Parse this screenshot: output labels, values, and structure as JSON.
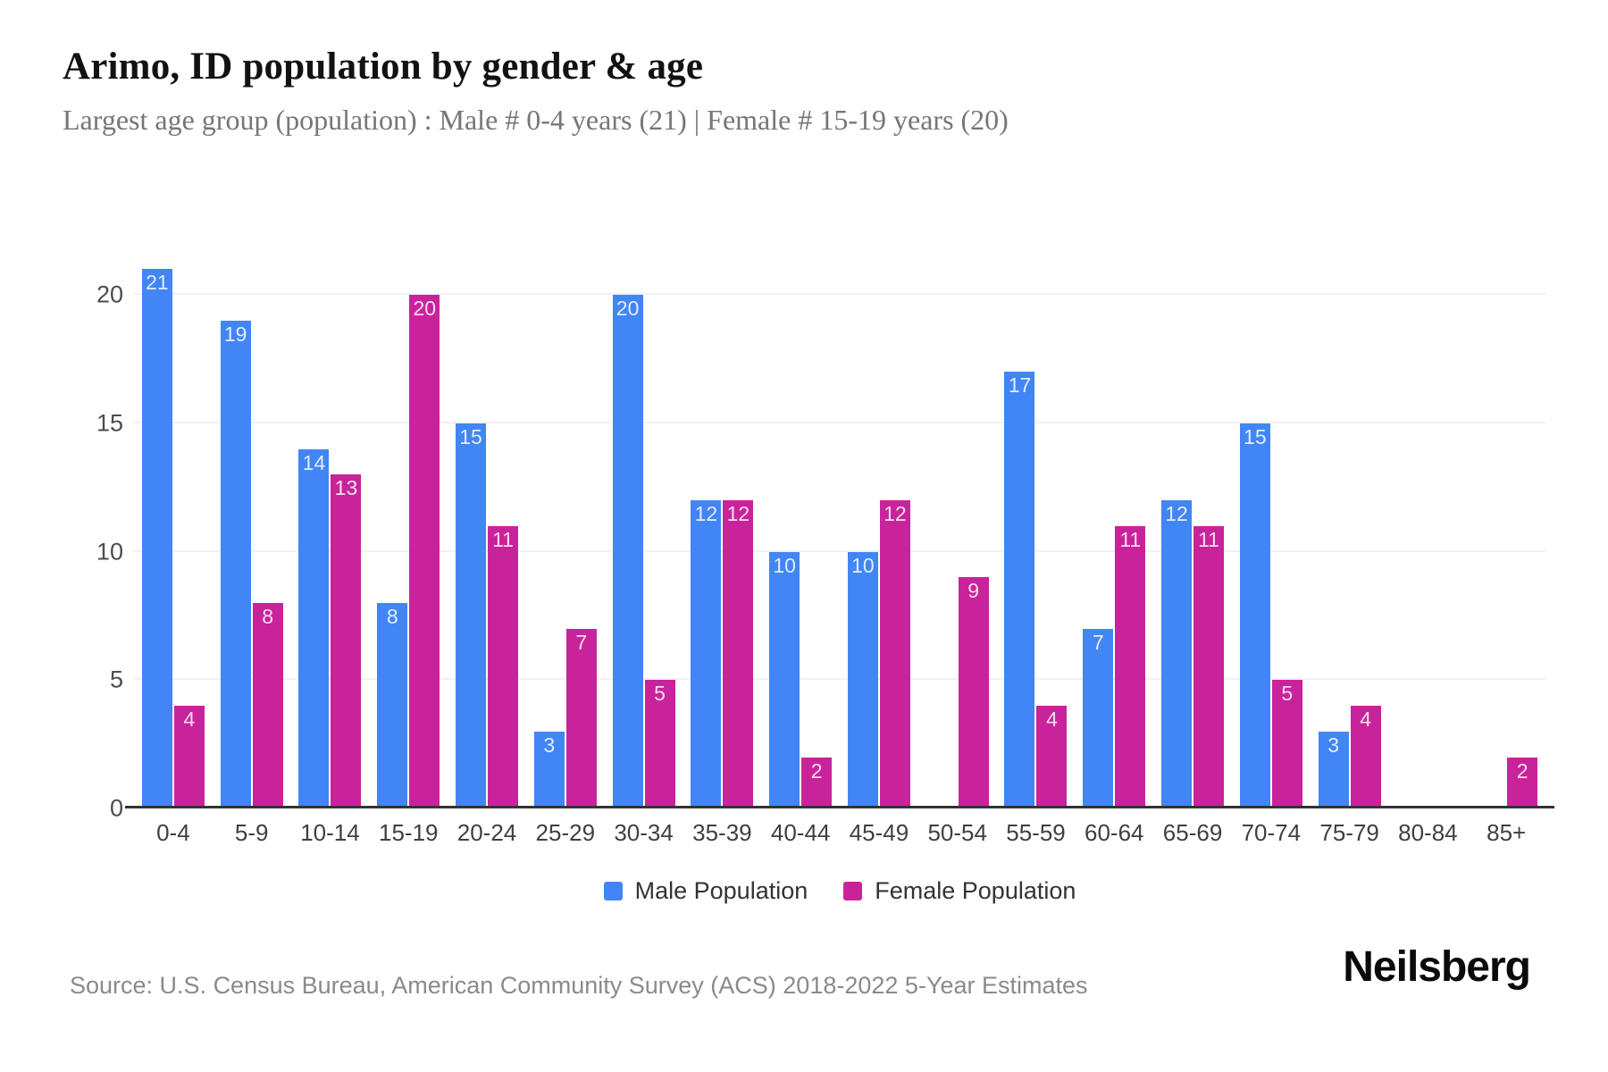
{
  "title": "Arimo, ID population by gender & age",
  "subtitle": "Largest age group (population) : Male # 0-4 years (21) | Female # 15-19 years (20)",
  "source": "Source: U.S. Census Bureau, American Community Survey (ACS) 2018-2022 5-Year Estimates",
  "brand": "Neilsberg",
  "colors": {
    "male": "#4285F4",
    "female": "#C9239B",
    "grid": "#f1f1f4",
    "axis_line": "#333333",
    "bar_label": "#ffffff"
  },
  "chart_data": {
    "type": "bar",
    "categories": [
      "0-4",
      "5-9",
      "10-14",
      "15-19",
      "20-24",
      "25-29",
      "30-34",
      "35-39",
      "40-44",
      "45-49",
      "50-54",
      "55-59",
      "60-64",
      "65-69",
      "70-74",
      "75-79",
      "80-84",
      "85+"
    ],
    "series": [
      {
        "name": "Male Population",
        "color_key": "male",
        "values": [
          21,
          19,
          14,
          8,
          15,
          3,
          20,
          12,
          10,
          10,
          0,
          17,
          7,
          12,
          15,
          3,
          0,
          0
        ]
      },
      {
        "name": "Female Population",
        "color_key": "female",
        "values": [
          4,
          8,
          13,
          20,
          11,
          7,
          5,
          12,
          2,
          12,
          9,
          4,
          11,
          11,
          5,
          4,
          0,
          2
        ]
      }
    ],
    "title": "Arimo, ID population by gender & age",
    "xlabel": "",
    "ylabel": "",
    "yticks": [
      0,
      5,
      10,
      15,
      20
    ],
    "ylim": [
      0,
      22
    ],
    "grid": true,
    "legend_position": "bottom",
    "bar_value_labels": "inside-top"
  }
}
